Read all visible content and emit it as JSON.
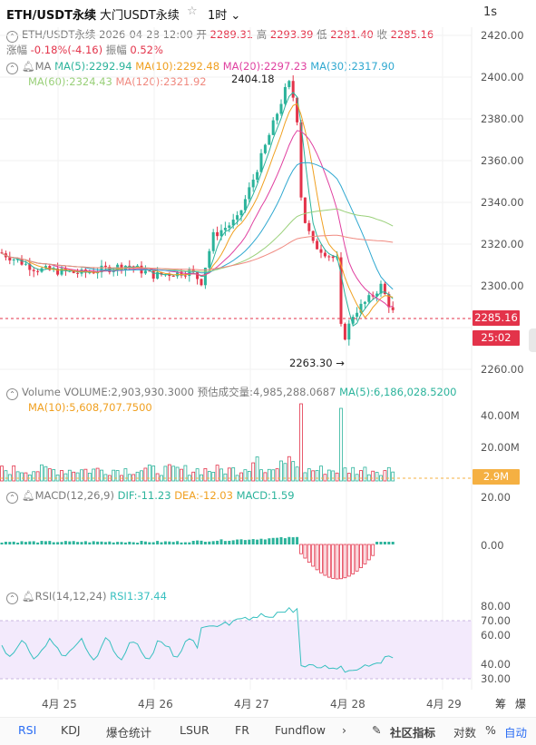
{
  "header": {
    "symbol": "ETH/USDT永续",
    "exchange": "大门USDT永续",
    "interval": "1时",
    "refresh": "1s"
  },
  "ohlc": {
    "symbol": "ETH/USDT永续",
    "time": "2026-04-28 12:00",
    "open_label": "开",
    "open": "2289.31",
    "high_label": "高",
    "high": "2293.39",
    "low_label": "低",
    "low": "2281.40",
    "close_label": "收",
    "close": "2285.16",
    "change_label": "涨幅",
    "change": "-0.18%(-4.16)",
    "amp_label": "振幅",
    "amp": "0.52%"
  },
  "ma": {
    "label": "MA",
    "ma5": "MA(5):2292.94",
    "ma10": "MA(10):2292.48",
    "ma20": "MA(20):2297.23",
    "ma30": "MA(30):2317.90",
    "ma60": "MA(60):2324.43",
    "ma120": "MA(120):2321.92",
    "colors": {
      "ma5": "#2bb39b",
      "ma10": "#f0a020",
      "ma20": "#e040a0",
      "ma30": "#2fa8d0",
      "ma60": "#9ad07a",
      "ma120": "#f08a80"
    }
  },
  "price_axis": [
    "2420.00",
    "2400.00",
    "2380.00",
    "2360.00",
    "2340.00",
    "2320.00",
    "2300.00",
    "2280.00",
    "2260.00"
  ],
  "price_tag": {
    "price": "2285.16",
    "countdown": "25:02"
  },
  "annotations": {
    "high": "2404.18",
    "low": "2263.30 →"
  },
  "volume": {
    "label": "Volume",
    "volume": "VOLUME:2,903,930.3000",
    "est": "预估成交量:4,985,288.0687",
    "ma5": "MA(5):6,186,028.5200",
    "ma10": "MA(10):5,608,707.7500",
    "axis": [
      "40.00M",
      "20.00M"
    ],
    "tag": "2.9M"
  },
  "macd": {
    "label": "MACD(12,26,9)",
    "dif": "DIF:-11.23",
    "dea": "DEA:-12.03",
    "macd": "MACD:1.59",
    "axis": [
      "20.00",
      "0.00"
    ]
  },
  "rsi": {
    "label": "RSI(14,12,24)",
    "rsi1": "RSI1:37.44",
    "axis": [
      "80.00",
      "70.00",
      "60.00",
      "40.00",
      "30.00"
    ]
  },
  "time_axis": [
    "4月 25",
    "4月 26",
    "4月 27",
    "4月 28",
    "4月 29"
  ],
  "side_buttons": [
    "筹",
    "爆"
  ],
  "bottom_tabs": [
    "RSI",
    "KDJ",
    "爆仓统计",
    "LSUR",
    "FR",
    "Fundflow",
    "›",
    "社区指标",
    "对数",
    "%",
    "自动"
  ]
}
